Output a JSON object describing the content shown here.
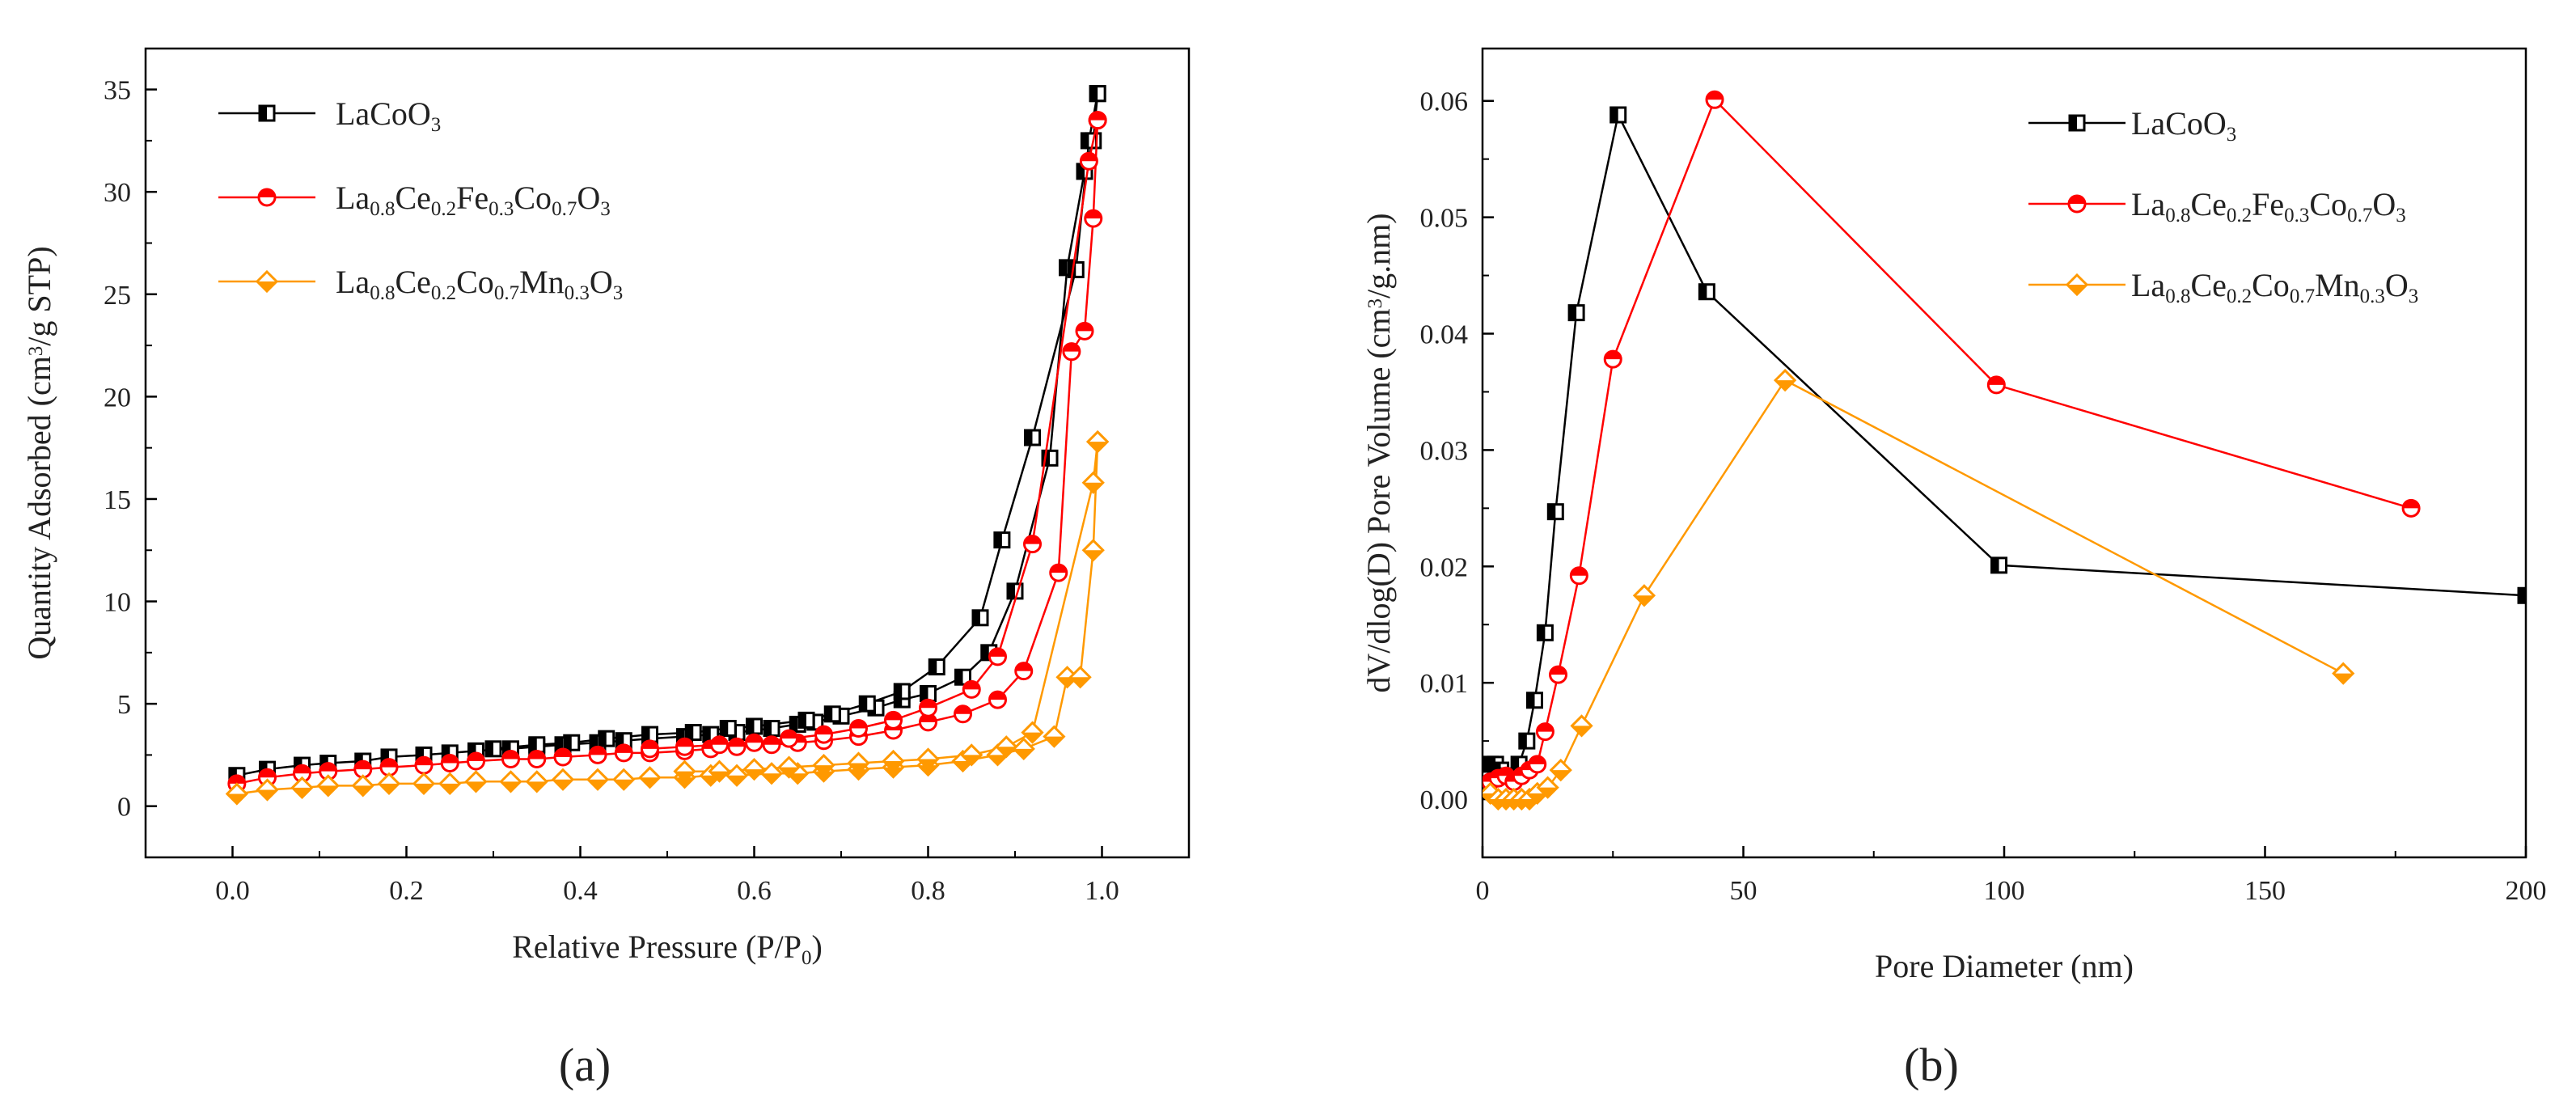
{
  "colors": {
    "black": "#000000",
    "red": "#ff0000",
    "orange": "#ff9900"
  },
  "chart_data": [
    {
      "type": "line",
      "panel_label": "(a)",
      "xlabel": "Relative Pressure (P/P0)",
      "ylabel": "Quantity Adsorbed (cm3/g STP)",
      "xlim": [
        -0.1,
        1.1
      ],
      "ylim": [
        -2.5,
        37
      ],
      "xticks": [
        0.0,
        0.2,
        0.4,
        0.6,
        0.8,
        1.0
      ],
      "xtick_labels": [
        "0.0",
        "0.2",
        "0.4",
        "0.6",
        "0.8",
        "1.0"
      ],
      "yticks": [
        0,
        5,
        10,
        15,
        20,
        25,
        30,
        35
      ],
      "ytick_labels": [
        "0",
        "5",
        "10",
        "15",
        "20",
        "25",
        "30",
        "35"
      ],
      "legend_position": "top-left",
      "series": [
        {
          "name": "LaCoO3",
          "label_parts": [
            [
              "La",
              ""
            ],
            [
              "CoO",
              ""
            ],
            [
              "3",
              "sub"
            ]
          ],
          "color": "#000000",
          "marker": "square",
          "adsorption": [
            [
              0.005,
              1.5
            ],
            [
              0.04,
              1.8
            ],
            [
              0.08,
              2.0
            ],
            [
              0.11,
              2.1
            ],
            [
              0.15,
              2.2
            ],
            [
              0.18,
              2.4
            ],
            [
              0.22,
              2.5
            ],
            [
              0.25,
              2.6
            ],
            [
              0.28,
              2.7
            ],
            [
              0.32,
              2.8
            ],
            [
              0.35,
              2.9
            ],
            [
              0.38,
              3.0
            ],
            [
              0.42,
              3.1
            ],
            [
              0.45,
              3.2
            ],
            [
              0.48,
              3.3
            ],
            [
              0.52,
              3.4
            ],
            [
              0.55,
              3.5
            ],
            [
              0.58,
              3.6
            ],
            [
              0.62,
              3.8
            ],
            [
              0.65,
              4.0
            ],
            [
              0.67,
              4.1
            ],
            [
              0.7,
              4.4
            ],
            [
              0.74,
              4.8
            ],
            [
              0.77,
              5.2
            ],
            [
              0.8,
              5.5
            ],
            [
              0.84,
              6.3
            ],
            [
              0.87,
              7.5
            ],
            [
              0.9,
              10.5
            ],
            [
              0.94,
              17.0
            ],
            [
              0.96,
              26.3
            ],
            [
              0.98,
              31.0
            ],
            [
              0.99,
              32.5
            ],
            [
              0.995,
              34.8
            ]
          ],
          "desorption": [
            [
              0.995,
              34.8
            ],
            [
              0.985,
              32.5
            ],
            [
              0.97,
              26.2
            ],
            [
              0.92,
              18.0
            ],
            [
              0.885,
              13.0
            ],
            [
              0.86,
              9.2
            ],
            [
              0.81,
              6.8
            ],
            [
              0.77,
              5.6
            ],
            [
              0.73,
              5.0
            ],
            [
              0.69,
              4.5
            ],
            [
              0.66,
              4.2
            ],
            [
              0.6,
              3.9
            ],
            [
              0.57,
              3.8
            ],
            [
              0.53,
              3.6
            ],
            [
              0.48,
              3.5
            ],
            [
              0.43,
              3.3
            ],
            [
              0.39,
              3.1
            ],
            [
              0.35,
              3.0
            ],
            [
              0.3,
              2.8
            ]
          ]
        },
        {
          "name": "La0.8Ce0.2Fe0.3Co0.7O3",
          "label_parts": [
            [
              "La",
              ""
            ],
            [
              "0.8",
              "sub"
            ],
            [
              "Ce",
              ""
            ],
            [
              "0.2",
              "sub"
            ],
            [
              "Fe",
              ""
            ],
            [
              "0.3",
              "sub"
            ],
            [
              "Co",
              ""
            ],
            [
              "0.7",
              "sub"
            ],
            [
              "O",
              ""
            ],
            [
              "3",
              "sub"
            ]
          ],
          "color": "#ff0000",
          "marker": "circle",
          "adsorption": [
            [
              0.005,
              1.1
            ],
            [
              0.04,
              1.4
            ],
            [
              0.08,
              1.6
            ],
            [
              0.11,
              1.7
            ],
            [
              0.15,
              1.8
            ],
            [
              0.18,
              1.9
            ],
            [
              0.22,
              2.0
            ],
            [
              0.25,
              2.1
            ],
            [
              0.28,
              2.2
            ],
            [
              0.32,
              2.3
            ],
            [
              0.35,
              2.3
            ],
            [
              0.38,
              2.4
            ],
            [
              0.42,
              2.5
            ],
            [
              0.45,
              2.6
            ],
            [
              0.48,
              2.6
            ],
            [
              0.52,
              2.7
            ],
            [
              0.55,
              2.8
            ],
            [
              0.58,
              2.9
            ],
            [
              0.62,
              3.0
            ],
            [
              0.65,
              3.1
            ],
            [
              0.68,
              3.2
            ],
            [
              0.72,
              3.4
            ],
            [
              0.76,
              3.7
            ],
            [
              0.8,
              4.1
            ],
            [
              0.84,
              4.5
            ],
            [
              0.88,
              5.2
            ],
            [
              0.91,
              6.6
            ],
            [
              0.95,
              11.4
            ],
            [
              0.965,
              22.2
            ],
            [
              0.98,
              23.2
            ],
            [
              0.99,
              28.7
            ],
            [
              0.995,
              33.5
            ]
          ],
          "desorption": [
            [
              0.995,
              33.5
            ],
            [
              0.985,
              31.5
            ],
            [
              0.92,
              12.8
            ],
            [
              0.88,
              7.3
            ],
            [
              0.85,
              5.7
            ],
            [
              0.8,
              4.8
            ],
            [
              0.76,
              4.2
            ],
            [
              0.72,
              3.8
            ],
            [
              0.68,
              3.5
            ],
            [
              0.64,
              3.3
            ],
            [
              0.6,
              3.1
            ],
            [
              0.56,
              3.0
            ],
            [
              0.52,
              2.9
            ],
            [
              0.48,
              2.8
            ]
          ]
        },
        {
          "name": "La0.8Ce0.2Co0.7Mn0.3O3",
          "label_parts": [
            [
              "La",
              ""
            ],
            [
              "0.8",
              "sub"
            ],
            [
              "Ce",
              ""
            ],
            [
              "0.2",
              "sub"
            ],
            [
              "Co",
              ""
            ],
            [
              "0.7",
              "sub"
            ],
            [
              "Mn",
              ""
            ],
            [
              "0.3",
              "sub"
            ],
            [
              "O",
              ""
            ],
            [
              "3",
              "sub"
            ]
          ],
          "color": "#ff9900",
          "marker": "diamond",
          "adsorption": [
            [
              0.005,
              0.6
            ],
            [
              0.04,
              0.8
            ],
            [
              0.08,
              0.9
            ],
            [
              0.11,
              1.0
            ],
            [
              0.15,
              1.0
            ],
            [
              0.18,
              1.1
            ],
            [
              0.22,
              1.1
            ],
            [
              0.25,
              1.1
            ],
            [
              0.28,
              1.2
            ],
            [
              0.32,
              1.2
            ],
            [
              0.35,
              1.2
            ],
            [
              0.38,
              1.3
            ],
            [
              0.42,
              1.3
            ],
            [
              0.45,
              1.3
            ],
            [
              0.48,
              1.4
            ],
            [
              0.52,
              1.4
            ],
            [
              0.55,
              1.5
            ],
            [
              0.58,
              1.5
            ],
            [
              0.62,
              1.6
            ],
            [
              0.65,
              1.6
            ],
            [
              0.68,
              1.7
            ],
            [
              0.72,
              1.8
            ],
            [
              0.76,
              1.9
            ],
            [
              0.8,
              2.0
            ],
            [
              0.84,
              2.2
            ],
            [
              0.88,
              2.5
            ],
            [
              0.91,
              2.8
            ],
            [
              0.945,
              3.4
            ],
            [
              0.96,
              6.3
            ],
            [
              0.975,
              6.3
            ],
            [
              0.99,
              12.5
            ],
            [
              0.995,
              17.8
            ]
          ],
          "desorption": [
            [
              0.995,
              17.8
            ],
            [
              0.99,
              15.8
            ],
            [
              0.92,
              3.6
            ],
            [
              0.89,
              2.9
            ],
            [
              0.85,
              2.5
            ],
            [
              0.8,
              2.3
            ],
            [
              0.76,
              2.2
            ],
            [
              0.72,
              2.1
            ],
            [
              0.68,
              2.0
            ],
            [
              0.64,
              1.9
            ],
            [
              0.6,
              1.8
            ],
            [
              0.56,
              1.7
            ],
            [
              0.52,
              1.7
            ]
          ]
        }
      ]
    },
    {
      "type": "line",
      "panel_label": "(b)",
      "xlabel": "Pore Diameter (nm)",
      "ylabel": "dV/dlog(D) Pore Volume (cm3/g.nm)",
      "xlim": [
        0,
        200
      ],
      "ylim": [
        -0.005,
        0.0645
      ],
      "xticks": [
        0,
        50,
        100,
        150,
        200
      ],
      "xtick_labels": [
        "0",
        "50",
        "100",
        "150",
        "200"
      ],
      "yticks": [
        0,
        0.01,
        0.02,
        0.03,
        0.04,
        0.05,
        0.06
      ],
      "ytick_labels": [
        "0.00",
        "0.01",
        "0.02",
        "0.03",
        "0.04",
        "0.05",
        "0.06"
      ],
      "legend_position": "top-right",
      "series": [
        {
          "name": "LaCoO3",
          "label_parts": [
            [
              "La",
              ""
            ],
            [
              "CoO",
              ""
            ],
            [
              "3",
              "sub"
            ]
          ],
          "color": "#000000",
          "marker": "square",
          "points": [
            [
              1.5,
              0.003
            ],
            [
              2.5,
              0.003
            ],
            [
              3.5,
              0.0025
            ],
            [
              5,
              0.002
            ],
            [
              6,
              0.002
            ],
            [
              7,
              0.003
            ],
            [
              8.5,
              0.005
            ],
            [
              10,
              0.0085
            ],
            [
              12,
              0.0143
            ],
            [
              14,
              0.0247
            ],
            [
              18,
              0.0418
            ],
            [
              26,
              0.0588
            ],
            [
              43,
              0.0436
            ],
            [
              99,
              0.0201
            ],
            [
              200,
              0.0175
            ]
          ]
        },
        {
          "name": "La0.8Ce0.2Fe0.3Co0.7O3",
          "label_parts": [
            [
              "La",
              ""
            ],
            [
              "0.8",
              "sub"
            ],
            [
              "Ce",
              ""
            ],
            [
              "0.2",
              "sub"
            ],
            [
              "Fe",
              ""
            ],
            [
              "0.3",
              "sub"
            ],
            [
              "Co",
              ""
            ],
            [
              "0.7",
              "sub"
            ],
            [
              "O",
              ""
            ],
            [
              "3",
              "sub"
            ]
          ],
          "color": "#ff0000",
          "marker": "circle",
          "points": [
            [
              1.5,
              0.0015
            ],
            [
              3,
              0.0018
            ],
            [
              4.5,
              0.002
            ],
            [
              6,
              0.0015
            ],
            [
              7.5,
              0.002
            ],
            [
              9,
              0.0025
            ],
            [
              10.5,
              0.003
            ],
            [
              12,
              0.0058
            ],
            [
              14.5,
              0.0107
            ],
            [
              18.5,
              0.0192
            ],
            [
              25,
              0.0378
            ],
            [
              44.5,
              0.0601
            ],
            [
              98.5,
              0.0356
            ],
            [
              178,
              0.025
            ]
          ]
        },
        {
          "name": "La0.8Ce0.2Co0.7Mn0.3O3",
          "label_parts": [
            [
              "La",
              ""
            ],
            [
              "0.8",
              "sub"
            ],
            [
              "Ce",
              ""
            ],
            [
              "0.2",
              "sub"
            ],
            [
              "Co",
              ""
            ],
            [
              "0.7",
              "sub"
            ],
            [
              "Mn",
              ""
            ],
            [
              "0.3",
              "sub"
            ],
            [
              "O",
              ""
            ],
            [
              "3",
              "sub"
            ]
          ],
          "color": "#ff9900",
          "marker": "diamond",
          "points": [
            [
              1.5,
              0.0005
            ],
            [
              3,
              0.0
            ],
            [
              4.5,
              0.0
            ],
            [
              6,
              0.0
            ],
            [
              7.5,
              0.0
            ],
            [
              9,
              0.0
            ],
            [
              10.5,
              0.0005
            ],
            [
              12.5,
              0.001
            ],
            [
              15,
              0.0025
            ],
            [
              19,
              0.0063
            ],
            [
              31,
              0.0175
            ],
            [
              58,
              0.036
            ],
            [
              165,
              0.0108
            ]
          ]
        }
      ]
    }
  ]
}
